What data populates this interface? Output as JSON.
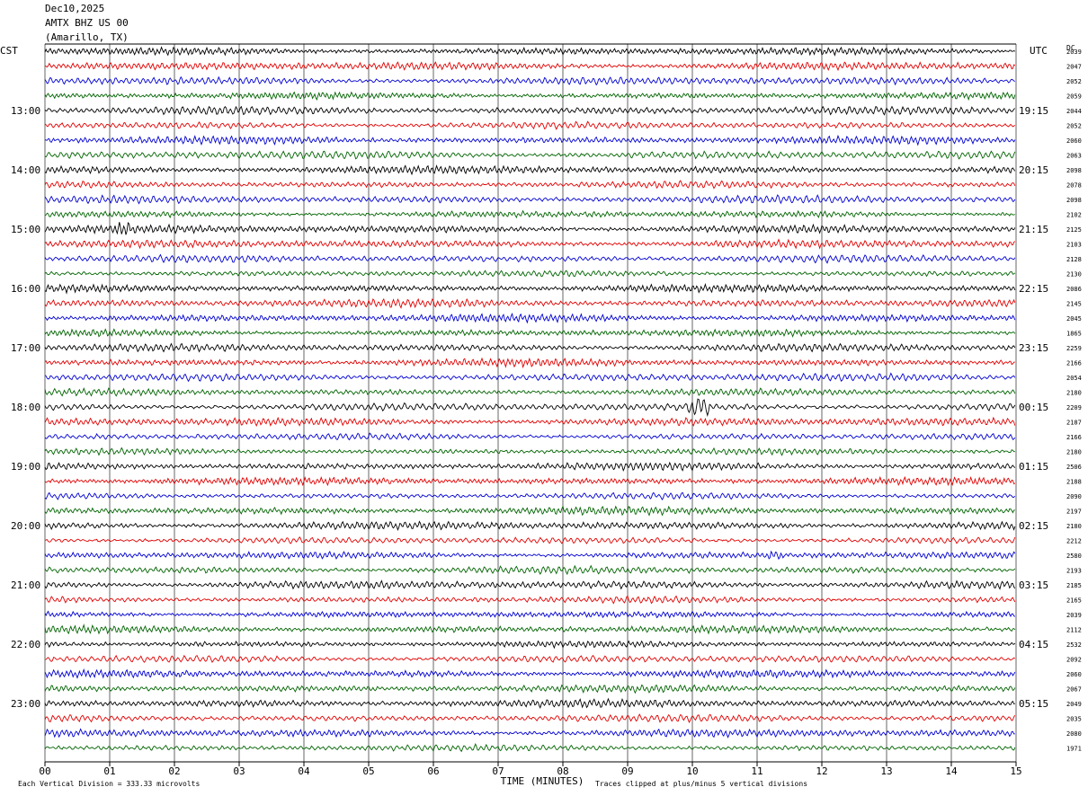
{
  "header": {
    "date": "Dec10,2025",
    "station": "AMTX BHZ US 00",
    "location": "(Amarillo, TX)"
  },
  "left_tz": "CST",
  "right_tz": "UTC",
  "right_col_header": "DC",
  "footer": {
    "scale_note": "Each Vertical Division = 333.33 microvolts",
    "clip_note": "Traces clipped at plus/minus 5 vertical divisions"
  },
  "colors": {
    "trace_cycle": [
      "#000000",
      "#e00000",
      "#0000d0",
      "#006400"
    ],
    "grid": "#000000"
  },
  "chart_data": {
    "type": "line",
    "title": "",
    "xlabel": "TIME (MINUTES)",
    "x_ticks": [
      "00",
      "01",
      "02",
      "03",
      "04",
      "05",
      "06",
      "07",
      "08",
      "09",
      "10",
      "11",
      "12",
      "13",
      "14",
      "15"
    ],
    "xlim": [
      0,
      15
    ],
    "left_hour_labels": [
      "13:00",
      "14:00",
      "15:00",
      "16:00",
      "17:00",
      "18:00",
      "19:00",
      "20:00",
      "21:00",
      "22:00",
      "23:00"
    ],
    "right_hour_labels": [
      "19:15",
      "20:15",
      "21:15",
      "22:15",
      "23:15",
      "00:15",
      "01:15",
      "02:15",
      "03:15",
      "04:15",
      "05:15"
    ],
    "dc_offsets": [
      "2039",
      "2047",
      "2052",
      "2059",
      "2044",
      "2052",
      "2060",
      "2063",
      "2098",
      "2078",
      "2098",
      "2102",
      "2125",
      "2103",
      "2128",
      "2130",
      "2086",
      "2145",
      "2045",
      "1865",
      "2259",
      "2166",
      "2054",
      "2180",
      "2209",
      "2187",
      "2166",
      "2180",
      "2506",
      "2188",
      "2090",
      "2197",
      "2180",
      "2212",
      "2580",
      "2193",
      "2185",
      "2165",
      "2039",
      "2112",
      "2532",
      "2092",
      "2060",
      "2067",
      "2049",
      "2035",
      "2080",
      "1971"
    ],
    "rows": 48,
    "minutes_per_row": 15,
    "notes": "48 continuous 15-minute helicorder traces, colour cycling black/red/blue/green; values are seismic ground-motion counts"
  }
}
